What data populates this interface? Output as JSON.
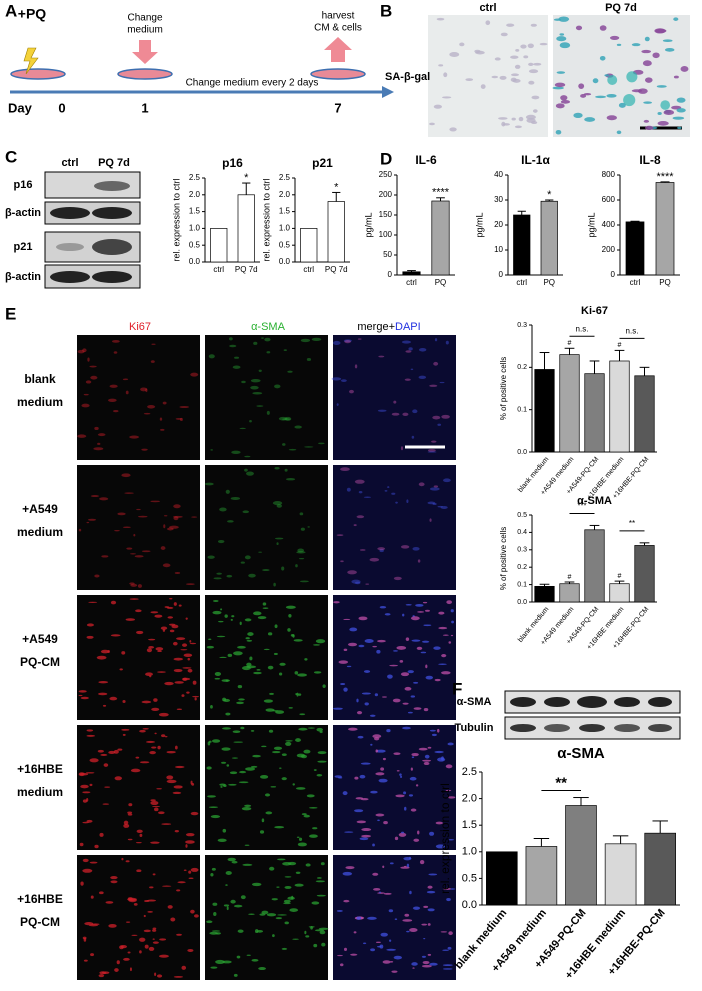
{
  "panels": {
    "a": {
      "letter": "A",
      "drug": "+PQ",
      "change": [
        "Change",
        "medium"
      ],
      "harvest": [
        "harvest",
        "CM & cells"
      ],
      "timeline": "Change medium every 2 days",
      "day": "Day",
      "days": [
        "0",
        "1",
        "7"
      ]
    },
    "b": {
      "letter": "B",
      "stain": "SA-β-gal",
      "conditions": [
        "ctrl",
        "PQ 7d"
      ]
    },
    "c": {
      "letter": "C",
      "conditions": [
        "ctrl",
        "PQ 7d"
      ],
      "blots": [
        "p16",
        "β-actin",
        "p21",
        "β-actin"
      ]
    },
    "d": {
      "letter": "D"
    },
    "e": {
      "letter": "E",
      "channels": [
        "Ki67",
        "α-SMA"
      ],
      "merge": "merge+",
      "dapi": "DAPI",
      "rows": [
        [
          "blank",
          "medium"
        ],
        [
          "+A549",
          "medium"
        ],
        [
          "+A549",
          "PQ-CM"
        ],
        [
          "+16HBE",
          "medium"
        ],
        [
          "+16HBE",
          "PQ-CM"
        ]
      ]
    },
    "f": {
      "letter": "F",
      "blots": [
        "α-SMA",
        "Tubulin"
      ]
    }
  },
  "chart_data": [
    {
      "type": "bar",
      "title": "p16",
      "ylabel": "rel. expression to ctrl",
      "categories": [
        "ctrl",
        "PQ 7d"
      ],
      "values": [
        1,
        2.0
      ],
      "errors": [
        null,
        0.35
      ],
      "colors": [
        "#ffffff",
        "#ffffff"
      ],
      "ylim": [
        0,
        2.5
      ],
      "yticks": [
        {
          "value": 0,
          "label": "0.0"
        },
        {
          "value": 0.5,
          "label": "0.5"
        },
        {
          "value": 1,
          "label": "1.0"
        },
        {
          "value": 1.5,
          "label": "1.5"
        },
        {
          "value": 2,
          "label": "2.0"
        },
        {
          "value": 2.5,
          "label": "2.5"
        }
      ],
      "marks": [
        null,
        "*"
      ]
    },
    {
      "type": "bar",
      "title": "p21",
      "ylabel": "rel. expression to ctrl",
      "categories": [
        "ctrl",
        "PQ 7d"
      ],
      "values": [
        1,
        1.8
      ],
      "errors": [
        null,
        0.27
      ],
      "colors": [
        "#ffffff",
        "#ffffff"
      ],
      "ylim": [
        0,
        2.5
      ],
      "yticks": [
        {
          "value": 0,
          "label": "0.0"
        },
        {
          "value": 0.5,
          "label": "0.5"
        },
        {
          "value": 1,
          "label": "1.0"
        },
        {
          "value": 1.5,
          "label": "1.5"
        },
        {
          "value": 2,
          "label": "2.0"
        },
        {
          "value": 2.5,
          "label": "2.5"
        }
      ],
      "marks": [
        null,
        "*"
      ]
    },
    {
      "type": "bar",
      "title": "IL-6",
      "ylabel": "pg/mL",
      "categories": [
        "ctrl",
        "PQ"
      ],
      "values": [
        8,
        185
      ],
      "errors": [
        3,
        8
      ],
      "colors": [
        "#000000",
        "#a6a6a6"
      ],
      "ylim": [
        0,
        250
      ],
      "yticks": [
        0,
        50,
        100,
        150,
        200,
        250
      ],
      "marks": [
        null,
        "****"
      ]
    },
    {
      "type": "bar",
      "title": "IL-1α",
      "ylabel": "pg/mL",
      "categories": [
        "ctrl",
        "PQ"
      ],
      "values": [
        24,
        29.5
      ],
      "errors": [
        1.5,
        0.5
      ],
      "colors": [
        "#000000",
        "#a6a6a6"
      ],
      "ylim": [
        0,
        40
      ],
      "yticks": [
        0,
        10,
        20,
        30,
        40
      ],
      "marks": [
        null,
        "*"
      ]
    },
    {
      "type": "bar",
      "title": "IL-8",
      "ylabel": "pg/mL",
      "categories": [
        "ctrl",
        "PQ"
      ],
      "values": [
        425,
        740
      ],
      "errors": [
        5,
        5
      ],
      "colors": [
        "#000000",
        "#a6a6a6"
      ],
      "ylim": [
        0,
        800
      ],
      "yticks": [
        0,
        200,
        400,
        600,
        800
      ],
      "marks": [
        null,
        "****"
      ]
    },
    {
      "type": "bar",
      "title": "Ki-67",
      "ylabel": "% of positive cells",
      "categories": [
        "blank medium",
        "+A549 medium",
        "+A549-PQ-CM",
        "+16HBE medium",
        "+16HBE-PQ-CM"
      ],
      "values": [
        0.195,
        0.23,
        0.185,
        0.215,
        0.18
      ],
      "errors": [
        0.04,
        0.015,
        0.03,
        0.025,
        0.02
      ],
      "colors": [
        "#000000",
        "#a6a6a6",
        "#7f7f7f",
        "#d9d9d9",
        "#595959"
      ],
      "ylim": [
        0,
        0.3
      ],
      "yticks": [
        {
          "value": 0,
          "label": "0.0"
        },
        {
          "value": 0.1,
          "label": "0.1"
        },
        {
          "value": 0.2,
          "label": "0.2"
        },
        {
          "value": 0.3,
          "label": "0.3"
        }
      ],
      "marks": [
        null,
        "#",
        null,
        "#",
        null
      ],
      "brackets": [
        null,
        "n.s.",
        null,
        "n.s.",
        null
      ]
    },
    {
      "type": "bar",
      "title": "α-SMA",
      "ylabel": "% of positive cells",
      "categories": [
        "blank medium",
        "+A549 medium",
        "+A549-PQ-CM",
        "+16HBE medium",
        "+16HBE-PQ-CM"
      ],
      "values": [
        0.09,
        0.105,
        0.415,
        0.105,
        0.325
      ],
      "errors": [
        0.012,
        0.01,
        0.025,
        0.015,
        0.015
      ],
      "colors": [
        "#000000",
        "#a6a6a6",
        "#7f7f7f",
        "#d9d9d9",
        "#595959"
      ],
      "ylim": [
        0,
        0.5
      ],
      "yticks": [
        {
          "value": 0,
          "label": "0.0"
        },
        {
          "value": 0.1,
          "label": "0.1"
        },
        {
          "value": 0.2,
          "label": "0.2"
        },
        {
          "value": 0.3,
          "label": "0.3"
        },
        {
          "value": 0.4,
          "label": "0.4"
        },
        {
          "value": 0.5,
          "label": "0.5"
        }
      ],
      "marks": [
        null,
        "#",
        null,
        "#",
        null
      ],
      "brackets": [
        null,
        "***",
        null,
        "**",
        null
      ]
    },
    {
      "type": "bar",
      "title": "α-SMA",
      "ylabel": "rel. expression to ctrl",
      "categories": [
        "blank medium",
        "+A549 medium",
        "+A549-PQ-CM",
        "+16HBE medium",
        "+16HBE-PQ-CM"
      ],
      "values": [
        1.0,
        1.1,
        1.87,
        1.15,
        1.35
      ],
      "errors": [
        null,
        0.15,
        0.15,
        0.15,
        0.23
      ],
      "colors": [
        "#000000",
        "#a6a6a6",
        "#7f7f7f",
        "#d9d9d9",
        "#595959"
      ],
      "ylim": [
        0,
        2.5
      ],
      "yticks": [
        {
          "value": 0,
          "label": "0.0"
        },
        {
          "value": 0.5,
          "label": "0.5"
        },
        {
          "value": 1,
          "label": "1.0"
        },
        {
          "value": 1.5,
          "label": "1.5"
        },
        {
          "value": 2,
          "label": "2.0"
        },
        {
          "value": 2.5,
          "label": "2.5"
        }
      ],
      "brackets": [
        null,
        "**",
        null,
        null,
        null
      ]
    }
  ]
}
